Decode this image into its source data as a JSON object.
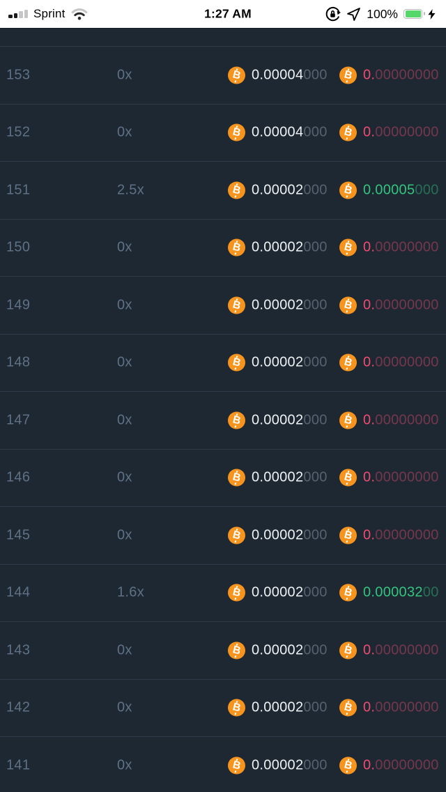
{
  "status_bar": {
    "carrier": "Sprint",
    "time": "1:27 AM",
    "battery_percent": "100%",
    "battery_color": "#55d76a",
    "icons": [
      "cell-signal-bars",
      "wifi",
      "rotation-lock",
      "location-arrow",
      "battery",
      "charging-bolt"
    ]
  },
  "colors": {
    "background": "#1e2833",
    "divider": "#2d3a49",
    "muted_text": "#5f7184",
    "amount_text": "#eff2f4",
    "amount_dim": "#566270",
    "loss_red": "#ef4c70",
    "win_green": "#33c57d",
    "bitcoin_orange": "#f7941d"
  },
  "table": {
    "icon": "btc-coin",
    "rows": [
      {
        "game": "153",
        "multiplier": "0x",
        "bet_main": "0.00004",
        "bet_dim": "000",
        "profit_main": "0.",
        "profit_dim": "00000000",
        "result": "loss"
      },
      {
        "game": "152",
        "multiplier": "0x",
        "bet_main": "0.00004",
        "bet_dim": "000",
        "profit_main": "0.",
        "profit_dim": "00000000",
        "result": "loss"
      },
      {
        "game": "151",
        "multiplier": "2.5x",
        "bet_main": "0.00002",
        "bet_dim": "000",
        "profit_main": "0.00005",
        "profit_dim": "000",
        "result": "win"
      },
      {
        "game": "150",
        "multiplier": "0x",
        "bet_main": "0.00002",
        "bet_dim": "000",
        "profit_main": "0.",
        "profit_dim": "00000000",
        "result": "loss"
      },
      {
        "game": "149",
        "multiplier": "0x",
        "bet_main": "0.00002",
        "bet_dim": "000",
        "profit_main": "0.",
        "profit_dim": "00000000",
        "result": "loss"
      },
      {
        "game": "148",
        "multiplier": "0x",
        "bet_main": "0.00002",
        "bet_dim": "000",
        "profit_main": "0.",
        "profit_dim": "00000000",
        "result": "loss"
      },
      {
        "game": "147",
        "multiplier": "0x",
        "bet_main": "0.00002",
        "bet_dim": "000",
        "profit_main": "0.",
        "profit_dim": "00000000",
        "result": "loss"
      },
      {
        "game": "146",
        "multiplier": "0x",
        "bet_main": "0.00002",
        "bet_dim": "000",
        "profit_main": "0.",
        "profit_dim": "00000000",
        "result": "loss"
      },
      {
        "game": "145",
        "multiplier": "0x",
        "bet_main": "0.00002",
        "bet_dim": "000",
        "profit_main": "0.",
        "profit_dim": "00000000",
        "result": "loss"
      },
      {
        "game": "144",
        "multiplier": "1.6x",
        "bet_main": "0.00002",
        "bet_dim": "000",
        "profit_main": "0.000032",
        "profit_dim": "00",
        "result": "win"
      },
      {
        "game": "143",
        "multiplier": "0x",
        "bet_main": "0.00002",
        "bet_dim": "000",
        "profit_main": "0.",
        "profit_dim": "00000000",
        "result": "loss"
      },
      {
        "game": "142",
        "multiplier": "0x",
        "bet_main": "0.00002",
        "bet_dim": "000",
        "profit_main": "0.",
        "profit_dim": "00000000",
        "result": "loss"
      },
      {
        "game": "141",
        "multiplier": "0x",
        "bet_main": "0.00002",
        "bet_dim": "000",
        "profit_main": "0.",
        "profit_dim": "00000000",
        "result": "loss"
      }
    ]
  }
}
